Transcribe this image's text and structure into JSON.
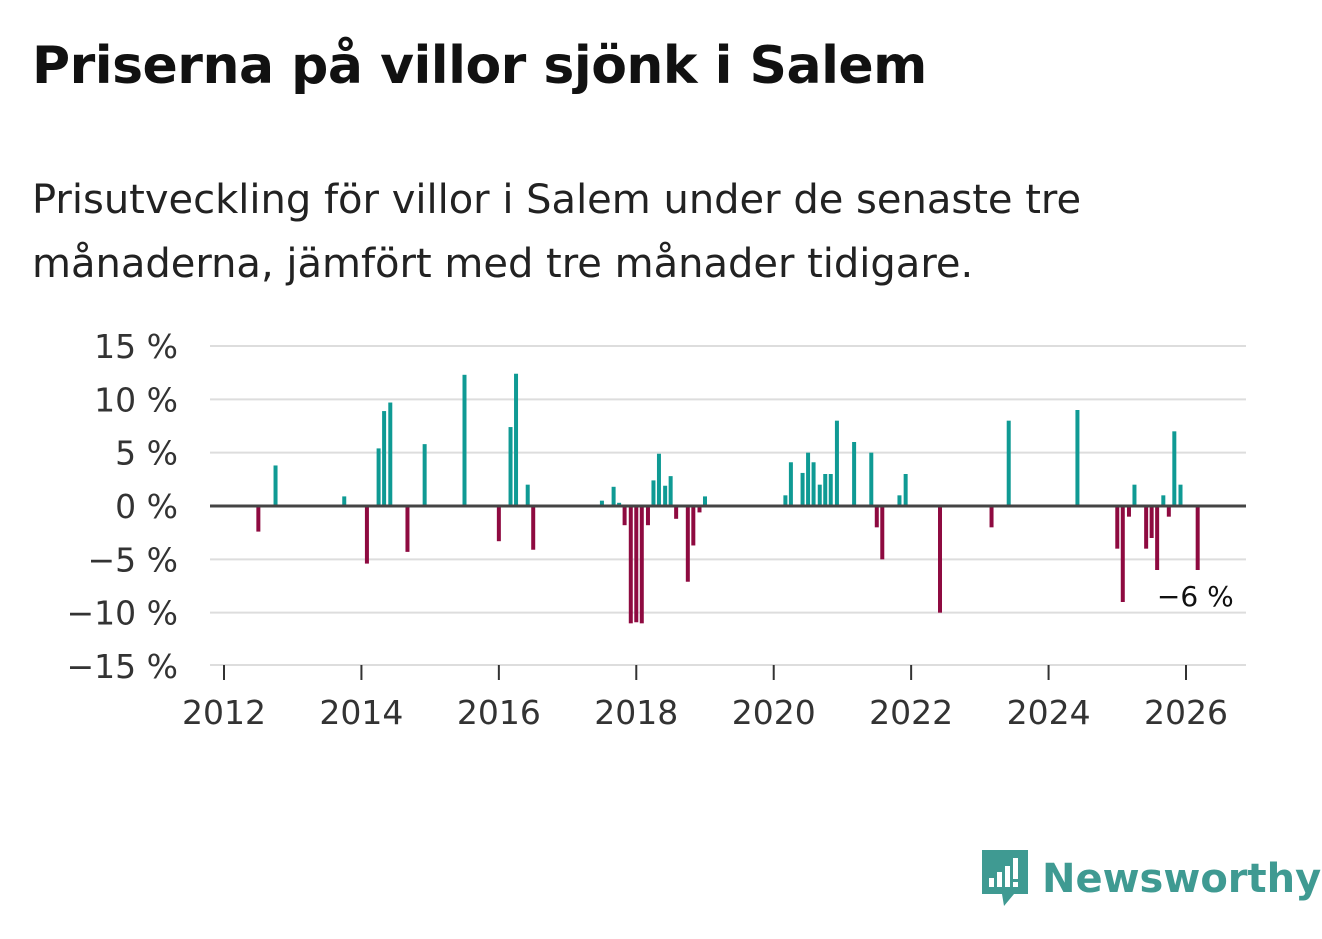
{
  "title": "Priserna på villor sjönk i Salem",
  "subtitle": "Prisutveckling för villor i Salem under de senaste tre månaderna, jämfört med tre månader tidigare.",
  "brand": "Newsworthy",
  "colors": {
    "positive": "#0f9a94",
    "negative": "#8e0a40",
    "zero_line": "#444444",
    "grid": "#dddddd"
  },
  "chart_data": {
    "type": "bar",
    "title": "Priserna på villor sjönk i Salem",
    "xlabel": "",
    "ylabel": "",
    "ylim": [
      -15,
      15
    ],
    "xlim": [
      2011.8,
      2026.88
    ],
    "yticks": [
      15,
      10,
      5,
      0,
      -5,
      -10,
      -15
    ],
    "ytick_labels": [
      "15 %",
      "10 %",
      "5 %",
      "0 %",
      "−5 %",
      "−10 %",
      "−15 %"
    ],
    "xticks": [
      2012,
      2014,
      2016,
      2018,
      2020,
      2022,
      2024,
      2026
    ],
    "xtick_labels": [
      "2012",
      "2014",
      "2016",
      "2018",
      "2020",
      "2022",
      "2024",
      "2026"
    ],
    "annotation": {
      "text": "−6 %",
      "x": 2026.17,
      "y": -6
    },
    "bars": [
      {
        "x": 2012.5,
        "value": -2.4
      },
      {
        "x": 2012.75,
        "value": 3.8
      },
      {
        "x": 2013.75,
        "value": 0.9
      },
      {
        "x": 2014.08,
        "value": -5.4
      },
      {
        "x": 2014.25,
        "value": 5.4
      },
      {
        "x": 2014.33,
        "value": 8.9
      },
      {
        "x": 2014.42,
        "value": 9.7
      },
      {
        "x": 2014.67,
        "value": -4.3
      },
      {
        "x": 2014.92,
        "value": 5.8
      },
      {
        "x": 2015.5,
        "value": 12.3
      },
      {
        "x": 2016.0,
        "value": -3.3
      },
      {
        "x": 2016.17,
        "value": 7.4
      },
      {
        "x": 2016.25,
        "value": 12.4
      },
      {
        "x": 2016.42,
        "value": 2.0
      },
      {
        "x": 2016.5,
        "value": -4.1
      },
      {
        "x": 2017.5,
        "value": 0.5
      },
      {
        "x": 2017.67,
        "value": 1.8
      },
      {
        "x": 2017.75,
        "value": 0.3
      },
      {
        "x": 2017.83,
        "value": -1.8
      },
      {
        "x": 2017.92,
        "value": -11.0
      },
      {
        "x": 2018.0,
        "value": -10.9
      },
      {
        "x": 2018.08,
        "value": -11.0
      },
      {
        "x": 2018.17,
        "value": -1.8
      },
      {
        "x": 2018.25,
        "value": 2.4
      },
      {
        "x": 2018.33,
        "value": 4.9
      },
      {
        "x": 2018.42,
        "value": 1.9
      },
      {
        "x": 2018.5,
        "value": 2.8
      },
      {
        "x": 2018.58,
        "value": -1.2
      },
      {
        "x": 2018.75,
        "value": -7.1
      },
      {
        "x": 2018.83,
        "value": -3.7
      },
      {
        "x": 2018.92,
        "value": -0.6
      },
      {
        "x": 2019.0,
        "value": 0.9
      },
      {
        "x": 2020.17,
        "value": 1.0
      },
      {
        "x": 2020.25,
        "value": 4.1
      },
      {
        "x": 2020.42,
        "value": 3.1
      },
      {
        "x": 2020.5,
        "value": 5.0
      },
      {
        "x": 2020.58,
        "value": 4.1
      },
      {
        "x": 2020.67,
        "value": 2.0
      },
      {
        "x": 2020.75,
        "value": 3.0
      },
      {
        "x": 2020.83,
        "value": 3.0
      },
      {
        "x": 2020.92,
        "value": 8.0
      },
      {
        "x": 2021.17,
        "value": 6.0
      },
      {
        "x": 2021.42,
        "value": 5.0
      },
      {
        "x": 2021.5,
        "value": -2.0
      },
      {
        "x": 2021.58,
        "value": -5.0
      },
      {
        "x": 2021.83,
        "value": 1.0
      },
      {
        "x": 2021.92,
        "value": 3.0
      },
      {
        "x": 2022.42,
        "value": -10.0
      },
      {
        "x": 2023.17,
        "value": -2.0
      },
      {
        "x": 2023.42,
        "value": 8.0
      },
      {
        "x": 2024.42,
        "value": 9.0
      },
      {
        "x": 2025.0,
        "value": -4.0
      },
      {
        "x": 2025.08,
        "value": -9.0
      },
      {
        "x": 2025.17,
        "value": -1.0
      },
      {
        "x": 2025.25,
        "value": 2.0
      },
      {
        "x": 2025.42,
        "value": -4.0
      },
      {
        "x": 2025.5,
        "value": -3.0
      },
      {
        "x": 2025.58,
        "value": -6.0
      },
      {
        "x": 2025.67,
        "value": 1.0
      },
      {
        "x": 2025.75,
        "value": -1.0
      },
      {
        "x": 2025.83,
        "value": 7.0
      },
      {
        "x": 2025.92,
        "value": 2.0
      },
      {
        "x": 2026.17,
        "value": -6.0
      }
    ]
  }
}
